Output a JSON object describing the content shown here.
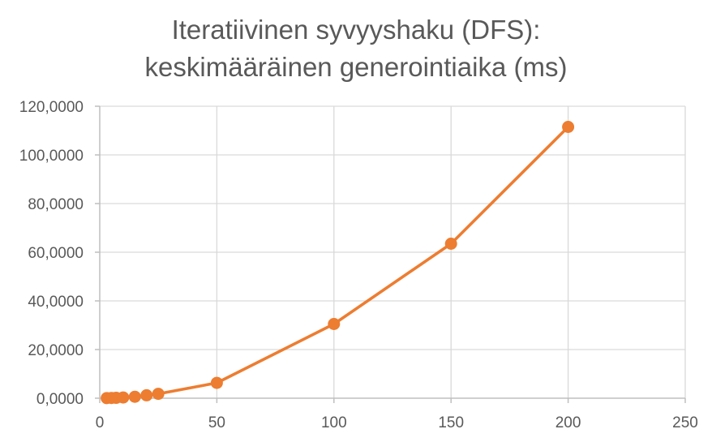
{
  "chart_data": {
    "type": "scatter",
    "title_lines": [
      "Iteratiivinen syvyyshaku (DFS):",
      "keskimääräinen generointiaika (ms)"
    ],
    "xlabel": "",
    "ylabel": "",
    "xlim": [
      0,
      250
    ],
    "ylim": [
      0,
      120
    ],
    "x_ticks": [
      0,
      50,
      100,
      150,
      200,
      250
    ],
    "y_ticks": [
      0,
      20,
      40,
      60,
      80,
      100,
      120
    ],
    "x_tick_labels": [
      "0",
      "50",
      "100",
      "150",
      "200",
      "250"
    ],
    "y_tick_labels": [
      "0,0000",
      "20,0000",
      "40,0000",
      "60,0000",
      "80,0000",
      "100,0000",
      "120,0000"
    ],
    "grid": true,
    "legend": "none",
    "series": [
      {
        "color": "#ED7D31",
        "marker": "circle",
        "line": true,
        "x": [
          3,
          5,
          7,
          10,
          15,
          20,
          25,
          50,
          100,
          150,
          200
        ],
        "y": [
          0.05,
          0.1,
          0.15,
          0.3,
          0.6,
          1.2,
          1.8,
          6.3,
          30.5,
          63.5,
          111.5
        ]
      }
    ]
  }
}
